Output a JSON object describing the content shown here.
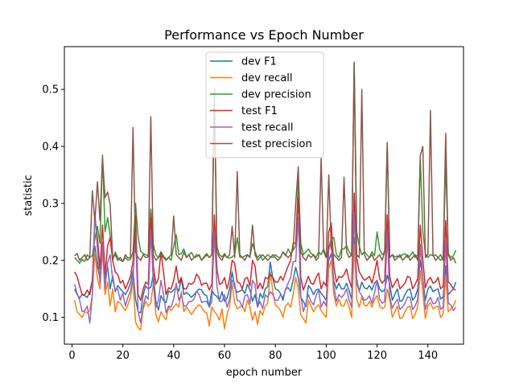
{
  "chart_data": {
    "type": "line",
    "title": "Performance vs Epoch Number",
    "xlabel": "epoch number",
    "ylabel": "statistic",
    "xlim": [
      -3,
      154
    ],
    "ylim": [
      0.053,
      0.575
    ],
    "xticks": [
      0,
      20,
      40,
      60,
      80,
      100,
      120,
      140
    ],
    "yticks": [
      0.1,
      0.2,
      0.3,
      0.4,
      0.5
    ],
    "xtick_labels": [
      "0",
      "20",
      "40",
      "60",
      "80",
      "100",
      "120",
      "140"
    ],
    "ytick_labels": [
      "0.1",
      "0.2",
      "0.3",
      "0.4",
      "0.5"
    ],
    "legend_position": "top-center",
    "colors": [
      "#1f77b4",
      "#ff7f0e",
      "#2ca02c",
      "#d62728",
      "#9467bd",
      "#8c564b"
    ],
    "x": [
      1,
      2,
      3,
      4,
      5,
      6,
      7,
      8,
      9,
      10,
      11,
      12,
      13,
      14,
      15,
      16,
      17,
      18,
      19,
      20,
      21,
      22,
      23,
      24,
      25,
      26,
      27,
      28,
      29,
      30,
      31,
      32,
      33,
      34,
      35,
      36,
      37,
      38,
      39,
      40,
      41,
      42,
      43,
      44,
      45,
      46,
      47,
      48,
      49,
      50,
      51,
      52,
      53,
      54,
      55,
      56,
      57,
      58,
      59,
      60,
      61,
      62,
      63,
      64,
      65,
      66,
      67,
      68,
      69,
      70,
      71,
      72,
      73,
      74,
      75,
      76,
      77,
      78,
      79,
      80,
      81,
      82,
      83,
      84,
      85,
      86,
      87,
      88,
      89,
      90,
      91,
      92,
      93,
      94,
      95,
      96,
      97,
      98,
      99,
      100,
      101,
      102,
      103,
      104,
      105,
      106,
      107,
      108,
      109,
      110,
      111,
      112,
      113,
      114,
      115,
      116,
      117,
      118,
      119,
      120,
      121,
      122,
      123,
      124,
      125,
      126,
      127,
      128,
      129,
      130,
      131,
      132,
      133,
      134,
      135,
      136,
      137,
      138,
      139,
      140,
      141,
      142,
      143,
      144,
      145,
      146,
      147,
      148,
      149,
      150,
      151
    ],
    "series": [
      {
        "name": "dev F1",
        "values": [
          0.15,
          0.14,
          0.134,
          0.14,
          0.138,
          0.135,
          0.145,
          0.165,
          0.225,
          0.19,
          0.168,
          0.228,
          0.168,
          0.19,
          0.15,
          0.173,
          0.145,
          0.156,
          0.15,
          0.145,
          0.14,
          0.148,
          0.16,
          0.182,
          0.132,
          0.11,
          0.108,
          0.14,
          0.155,
          0.15,
          0.153,
          0.175,
          0.128,
          0.113,
          0.138,
          0.13,
          0.126,
          0.146,
          0.144,
          0.148,
          0.154,
          0.146,
          0.168,
          0.14,
          0.144,
          0.14,
          0.135,
          0.14,
          0.145,
          0.15,
          0.148,
          0.14,
          0.138,
          0.118,
          0.148,
          0.14,
          0.137,
          0.13,
          0.145,
          0.128,
          0.134,
          0.15,
          0.18,
          0.152,
          0.144,
          0.146,
          0.149,
          0.142,
          0.158,
          0.148,
          0.128,
          0.14,
          0.118,
          0.142,
          0.134,
          0.15,
          0.154,
          0.197,
          0.168,
          0.15,
          0.148,
          0.142,
          0.13,
          0.15,
          0.152,
          0.146,
          0.166,
          0.188,
          0.17,
          0.136,
          0.128,
          0.119,
          0.156,
          0.15,
          0.14,
          0.148,
          0.15,
          0.142,
          0.137,
          0.13,
          0.2,
          0.212,
          0.164,
          0.15,
          0.16,
          0.15,
          0.15,
          0.16,
          0.147,
          0.132,
          0.24,
          0.16,
          0.146,
          0.162,
          0.152,
          0.15,
          0.156,
          0.148,
          0.16,
          0.165,
          0.15,
          0.145,
          0.148,
          0.174,
          0.158,
          0.13,
          0.14,
          0.15,
          0.128,
          0.13,
          0.14,
          0.148,
          0.15,
          0.13,
          0.136,
          0.15,
          0.2,
          0.168,
          0.13,
          0.15,
          0.155,
          0.145,
          0.148,
          0.15,
          0.132,
          0.136,
          0.19,
          0.14,
          0.145,
          0.15,
          0.162
        ]
      },
      {
        "name": "dev recall",
        "values": [
          0.13,
          0.11,
          0.105,
          0.1,
          0.11,
          0.108,
          0.112,
          0.14,
          0.215,
          0.168,
          0.15,
          0.218,
          0.14,
          0.162,
          0.12,
          0.15,
          0.11,
          0.128,
          0.125,
          0.118,
          0.112,
          0.122,
          0.135,
          0.165,
          0.092,
          0.082,
          0.078,
          0.115,
          0.128,
          0.12,
          0.125,
          0.16,
          0.105,
          0.092,
          0.11,
          0.102,
          0.096,
          0.118,
          0.112,
          0.118,
          0.124,
          0.118,
          0.145,
          0.11,
          0.118,
          0.112,
          0.105,
          0.112,
          0.118,
          0.122,
          0.118,
          0.11,
          0.108,
          0.085,
          0.118,
          0.11,
          0.105,
          0.095,
          0.115,
          0.08,
          0.105,
          0.12,
          0.16,
          0.125,
          0.115,
          0.118,
          0.12,
          0.11,
          0.13,
          0.118,
          0.095,
          0.11,
          0.088,
          0.112,
          0.104,
          0.12,
          0.125,
          0.18,
          0.145,
          0.122,
          0.118,
          0.112,
          0.1,
          0.12,
          0.125,
          0.118,
          0.14,
          0.17,
          0.15,
          0.105,
          0.098,
          0.09,
          0.13,
          0.12,
          0.11,
          0.118,
          0.122,
          0.112,
          0.106,
          0.1,
          0.185,
          0.2,
          0.14,
          0.12,
          0.132,
          0.12,
          0.12,
          0.132,
          0.118,
          0.1,
          0.228,
          0.132,
          0.118,
          0.136,
          0.122,
          0.12,
          0.128,
          0.118,
          0.132,
          0.138,
          0.12,
          0.115,
          0.118,
          0.15,
          0.13,
          0.1,
          0.11,
          0.12,
          0.098,
          0.1,
          0.11,
          0.118,
          0.12,
          0.098,
          0.105,
          0.12,
          0.182,
          0.145,
          0.098,
          0.12,
          0.126,
          0.115,
          0.118,
          0.12,
          0.1,
          0.106,
          0.172,
          0.11,
          0.115,
          0.12,
          0.13
        ]
      },
      {
        "name": "dev precision",
        "values": [
          0.205,
          0.2,
          0.195,
          0.202,
          0.198,
          0.21,
          0.205,
          0.208,
          0.238,
          0.26,
          0.23,
          0.385,
          0.25,
          0.275,
          0.245,
          0.2,
          0.215,
          0.205,
          0.2,
          0.198,
          0.205,
          0.2,
          0.202,
          0.215,
          0.3,
          0.242,
          0.216,
          0.212,
          0.21,
          0.208,
          0.29,
          0.228,
          0.21,
          0.205,
          0.215,
          0.208,
          0.202,
          0.205,
          0.2,
          0.225,
          0.245,
          0.21,
          0.212,
          0.22,
          0.206,
          0.21,
          0.214,
          0.205,
          0.21,
          0.208,
          0.2,
          0.207,
          0.212,
          0.205,
          0.21,
          0.48,
          0.225,
          0.21,
          0.206,
          0.212,
          0.205,
          0.204,
          0.206,
          0.21,
          0.24,
          0.206,
          0.205,
          0.208,
          0.21,
          0.206,
          0.23,
          0.215,
          0.205,
          0.21,
          0.2,
          0.205,
          0.21,
          0.206,
          0.205,
          0.21,
          0.206,
          0.205,
          0.215,
          0.208,
          0.22,
          0.212,
          0.218,
          0.225,
          0.34,
          0.23,
          0.21,
          0.215,
          0.22,
          0.212,
          0.21,
          0.205,
          0.215,
          0.21,
          0.22,
          0.205,
          0.22,
          0.24,
          0.24,
          0.21,
          0.205,
          0.22,
          0.22,
          0.226,
          0.215,
          0.208,
          0.548,
          0.25,
          0.225,
          0.21,
          0.215,
          0.21,
          0.205,
          0.215,
          0.208,
          0.25,
          0.22,
          0.21,
          0.215,
          0.4,
          0.205,
          0.21,
          0.206,
          0.208,
          0.205,
          0.21,
          0.212,
          0.205,
          0.208,
          0.215,
          0.205,
          0.21,
          0.38,
          0.25,
          0.212,
          0.205,
          0.21,
          0.208,
          0.21,
          0.205,
          0.2,
          0.205,
          0.375,
          0.212,
          0.205,
          0.208,
          0.218
        ]
      },
      {
        "name": "test F1",
        "values": [
          0.18,
          0.172,
          0.155,
          0.14,
          0.14,
          0.148,
          0.14,
          0.165,
          0.275,
          0.24,
          0.185,
          0.262,
          0.175,
          0.225,
          0.24,
          0.2,
          0.18,
          0.175,
          0.16,
          0.165,
          0.15,
          0.16,
          0.172,
          0.198,
          0.28,
          0.14,
          0.13,
          0.15,
          0.162,
          0.158,
          0.282,
          0.19,
          0.158,
          0.168,
          0.215,
          0.18,
          0.14,
          0.152,
          0.15,
          0.165,
          0.19,
          0.16,
          0.17,
          0.15,
          0.15,
          0.16,
          0.158,
          0.162,
          0.176,
          0.17,
          0.156,
          0.16,
          0.16,
          0.148,
          0.158,
          0.28,
          0.185,
          0.158,
          0.16,
          0.17,
          0.15,
          0.168,
          0.2,
          0.195,
          0.162,
          0.16,
          0.15,
          0.168,
          0.17,
          0.155,
          0.2,
          0.19,
          0.15,
          0.16,
          0.15,
          0.17,
          0.168,
          0.175,
          0.17,
          0.162,
          0.162,
          0.172,
          0.165,
          0.178,
          0.19,
          0.2,
          0.23,
          0.23,
          0.31,
          0.17,
          0.148,
          0.16,
          0.172,
          0.16,
          0.158,
          0.17,
          0.178,
          0.15,
          0.162,
          0.155,
          0.25,
          0.265,
          0.19,
          0.162,
          0.172,
          0.17,
          0.175,
          0.185,
          0.165,
          0.152,
          0.318,
          0.205,
          0.18,
          0.172,
          0.165,
          0.168,
          0.172,
          0.16,
          0.178,
          0.2,
          0.168,
          0.16,
          0.165,
          0.28,
          0.172,
          0.152,
          0.16,
          0.168,
          0.15,
          0.155,
          0.16,
          0.172,
          0.17,
          0.15,
          0.158,
          0.168,
          0.262,
          0.202,
          0.152,
          0.165,
          0.17,
          0.16,
          0.162,
          0.17,
          0.15,
          0.155,
          0.27,
          0.162,
          0.158,
          0.15,
          0.148
        ]
      },
      {
        "name": "test recall",
        "values": [
          0.158,
          0.142,
          0.13,
          0.11,
          0.112,
          0.12,
          0.09,
          0.138,
          0.285,
          0.22,
          0.16,
          0.232,
          0.15,
          0.196,
          0.21,
          0.165,
          0.148,
          0.15,
          0.13,
          0.142,
          0.12,
          0.135,
          0.146,
          0.17,
          0.248,
          0.11,
          0.09,
          0.12,
          0.138,
          0.132,
          0.25,
          0.16,
          0.118,
          0.13,
          0.165,
          0.14,
          0.108,
          0.12,
          0.118,
          0.132,
          0.16,
          0.13,
          0.14,
          0.12,
          0.12,
          0.128,
          0.128,
          0.132,
          0.146,
          0.14,
          0.126,
          0.128,
          0.128,
          0.118,
          0.128,
          0.25,
          0.155,
          0.128,
          0.128,
          0.14,
          0.118,
          0.132,
          0.165,
          0.16,
          0.13,
          0.128,
          0.118,
          0.138,
          0.14,
          0.124,
          0.165,
          0.158,
          0.118,
          0.128,
          0.115,
          0.14,
          0.135,
          0.145,
          0.14,
          0.13,
          0.13,
          0.14,
          0.135,
          0.148,
          0.16,
          0.17,
          0.198,
          0.198,
          0.275,
          0.138,
          0.11,
          0.125,
          0.14,
          0.128,
          0.122,
          0.138,
          0.148,
          0.118,
          0.128,
          0.12,
          0.218,
          0.232,
          0.156,
          0.128,
          0.14,
          0.135,
          0.14,
          0.15,
          0.13,
          0.118,
          0.285,
          0.168,
          0.145,
          0.138,
          0.13,
          0.132,
          0.138,
          0.125,
          0.143,
          0.165,
          0.132,
          0.125,
          0.128,
          0.248,
          0.136,
          0.116,
          0.125,
          0.132,
          0.114,
          0.118,
          0.125,
          0.136,
          0.135,
          0.114,
          0.12,
          0.132,
          0.228,
          0.168,
          0.114,
          0.128,
          0.135,
          0.124,
          0.125,
          0.135,
          0.114,
          0.118,
          0.236,
          0.125,
          0.122,
          0.112,
          0.118
        ]
      },
      {
        "name": "test precision",
        "values": [
          0.208,
          0.212,
          0.2,
          0.205,
          0.21,
          0.2,
          0.205,
          0.322,
          0.268,
          0.338,
          0.27,
          0.38,
          0.31,
          0.32,
          0.298,
          0.205,
          0.21,
          0.2,
          0.205,
          0.198,
          0.21,
          0.204,
          0.205,
          0.433,
          0.215,
          0.205,
          0.2,
          0.21,
          0.205,
          0.206,
          0.452,
          0.21,
          0.2,
          0.205,
          0.21,
          0.205,
          0.2,
          0.205,
          0.21,
          0.278,
          0.21,
          0.205,
          0.2,
          0.215,
          0.205,
          0.21,
          0.2,
          0.205,
          0.206,
          0.21,
          0.2,
          0.205,
          0.21,
          0.205,
          0.21,
          0.5,
          0.215,
          0.205,
          0.2,
          0.21,
          0.205,
          0.21,
          0.26,
          0.205,
          0.356,
          0.21,
          0.205,
          0.2,
          0.21,
          0.205,
          0.262,
          0.21,
          0.2,
          0.205,
          0.21,
          0.205,
          0.2,
          0.205,
          0.21,
          0.205,
          0.2,
          0.205,
          0.215,
          0.21,
          0.205,
          0.21,
          0.22,
          0.3,
          0.364,
          0.215,
          0.205,
          0.2,
          0.21,
          0.205,
          0.21,
          0.2,
          0.205,
          0.38,
          0.215,
          0.205,
          0.35,
          0.22,
          0.21,
          0.205,
          0.2,
          0.205,
          0.346,
          0.215,
          0.205,
          0.21,
          0.546,
          0.21,
          0.205,
          0.5,
          0.21,
          0.2,
          0.205,
          0.21,
          0.2,
          0.205,
          0.21,
          0.2,
          0.215,
          0.407,
          0.205,
          0.21,
          0.2,
          0.205,
          0.21,
          0.2,
          0.205,
          0.21,
          0.2,
          0.205,
          0.21,
          0.2,
          0.384,
          0.4,
          0.205,
          0.21,
          0.463,
          0.21,
          0.2,
          0.205,
          0.21,
          0.2,
          0.423,
          0.21,
          0.2,
          0.205,
          0.195
        ]
      }
    ]
  }
}
